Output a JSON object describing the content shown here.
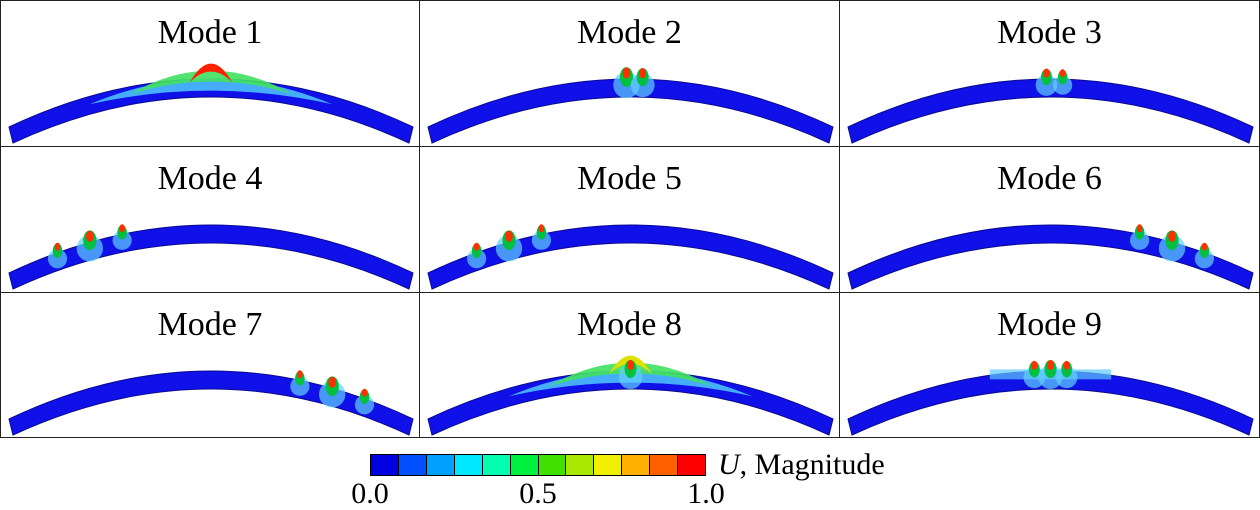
{
  "panels": [
    {
      "title": "Mode 1",
      "pattern": "global"
    },
    {
      "title": "Mode 2",
      "pattern": "center"
    },
    {
      "title": "Mode 3",
      "pattern": "center-small"
    },
    {
      "title": "Mode 4",
      "pattern": "left"
    },
    {
      "title": "Mode 5",
      "pattern": "left"
    },
    {
      "title": "Mode 6",
      "pattern": "right"
    },
    {
      "title": "Mode 7",
      "pattern": "right"
    },
    {
      "title": "Mode 8",
      "pattern": "global-center"
    },
    {
      "title": "Mode 9",
      "pattern": "center-wide"
    }
  ],
  "legend": {
    "variable": "U",
    "label": ", Magnitude",
    "tick_labels": [
      "0.0",
      "0.5",
      "1.0"
    ],
    "colors": [
      "#0000e0",
      "#0050ff",
      "#00a0ff",
      "#00e8ff",
      "#00ffb0",
      "#00f040",
      "#40e000",
      "#a8e800",
      "#f0f000",
      "#ffb000",
      "#ff6000",
      "#ff0000"
    ]
  },
  "colors": {
    "base_blue": "#1010e8",
    "panel_border": "#222222"
  }
}
